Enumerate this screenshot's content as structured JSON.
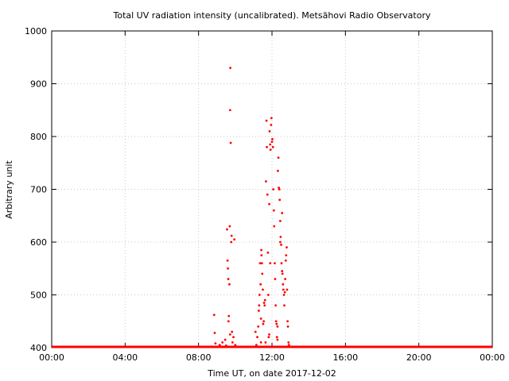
{
  "chart_data": {
    "type": "scatter",
    "title": "Total UV radiation intensity (uncalibrated). Metsähovi Radio Observatory",
    "xlabel": "Time UT, on date 2017-12-02",
    "ylabel": "Arbitrary unit",
    "xlim": [
      0,
      24
    ],
    "ylim": [
      400,
      1000
    ],
    "x_ticks": [
      {
        "value": 0,
        "label": "00:00"
      },
      {
        "value": 4,
        "label": "04:00"
      },
      {
        "value": 8,
        "label": "08:00"
      },
      {
        "value": 12,
        "label": "12:00"
      },
      {
        "value": 16,
        "label": "16:00"
      },
      {
        "value": 20,
        "label": "20:00"
      },
      {
        "value": 24,
        "label": "00:00"
      }
    ],
    "y_ticks": [
      400,
      500,
      600,
      700,
      800,
      900,
      1000
    ],
    "grid": true,
    "marker_color": "#ff0000",
    "baseline": {
      "value": 400,
      "from": 0,
      "to": 24
    },
    "points": [
      [
        8.85,
        462
      ],
      [
        8.88,
        428
      ],
      [
        8.92,
        408
      ],
      [
        9.15,
        405
      ],
      [
        9.3,
        410
      ],
      [
        9.45,
        415
      ],
      [
        9.5,
        404
      ],
      [
        9.55,
        624
      ],
      [
        9.58,
        565
      ],
      [
        9.6,
        550
      ],
      [
        9.62,
        530
      ],
      [
        9.63,
        450
      ],
      [
        9.65,
        460
      ],
      [
        9.68,
        520
      ],
      [
        9.7,
        630
      ],
      [
        9.72,
        850
      ],
      [
        9.73,
        930
      ],
      [
        9.75,
        788
      ],
      [
        9.78,
        600
      ],
      [
        9.8,
        612
      ],
      [
        9.72,
        425
      ],
      [
        9.82,
        430
      ],
      [
        9.85,
        410
      ],
      [
        9.9,
        420
      ],
      [
        9.95,
        605
      ],
      [
        10.0,
        405
      ],
      [
        10.05,
        402
      ],
      [
        11.1,
        430
      ],
      [
        11.15,
        405
      ],
      [
        11.2,
        420
      ],
      [
        11.25,
        440
      ],
      [
        11.28,
        470
      ],
      [
        11.3,
        480
      ],
      [
        11.32,
        500
      ],
      [
        11.35,
        560
      ],
      [
        11.38,
        520
      ],
      [
        11.4,
        455
      ],
      [
        11.42,
        585
      ],
      [
        11.43,
        575
      ],
      [
        11.45,
        560
      ],
      [
        11.47,
        540
      ],
      [
        11.5,
        510
      ],
      [
        11.52,
        445
      ],
      [
        11.55,
        450
      ],
      [
        11.57,
        485
      ],
      [
        11.6,
        480
      ],
      [
        11.62,
        490
      ],
      [
        11.65,
        410
      ],
      [
        11.67,
        715
      ],
      [
        11.7,
        830
      ],
      [
        11.72,
        780
      ],
      [
        11.75,
        690
      ],
      [
        11.78,
        580
      ],
      [
        11.8,
        500
      ],
      [
        11.82,
        420
      ],
      [
        11.85,
        672
      ],
      [
        11.87,
        810
      ],
      [
        11.9,
        785
      ],
      [
        11.92,
        775
      ],
      [
        11.95,
        822
      ],
      [
        11.97,
        835
      ],
      [
        12.0,
        790
      ],
      [
        12.02,
        795
      ],
      [
        12.05,
        780
      ],
      [
        12.07,
        700
      ],
      [
        12.1,
        660
      ],
      [
        12.12,
        630
      ],
      [
        12.15,
        560
      ],
      [
        12.17,
        530
      ],
      [
        12.2,
        480
      ],
      [
        12.22,
        450
      ],
      [
        12.25,
        445
      ],
      [
        12.27,
        420
      ],
      [
        12.3,
        440
      ],
      [
        12.32,
        735
      ],
      [
        12.35,
        760
      ],
      [
        12.37,
        703
      ],
      [
        12.4,
        700
      ],
      [
        12.42,
        680
      ],
      [
        12.45,
        640
      ],
      [
        12.47,
        610
      ],
      [
        12.5,
        595
      ],
      [
        12.52,
        560
      ],
      [
        12.55,
        545
      ],
      [
        12.57,
        540
      ],
      [
        12.6,
        520
      ],
      [
        12.62,
        510
      ],
      [
        12.65,
        500
      ],
      [
        12.67,
        480
      ],
      [
        12.7,
        505
      ],
      [
        12.72,
        530
      ],
      [
        12.75,
        565
      ],
      [
        12.77,
        575
      ],
      [
        12.8,
        590
      ],
      [
        12.82,
        510
      ],
      [
        12.85,
        450
      ],
      [
        12.87,
        440
      ],
      [
        12.9,
        410
      ],
      [
        12.92,
        405
      ],
      [
        11.4,
        410
      ],
      [
        11.85,
        425
      ],
      [
        12.3,
        415
      ],
      [
        12.45,
        600
      ],
      [
        12.55,
        655
      ],
      [
        11.9,
        560
      ]
    ]
  }
}
